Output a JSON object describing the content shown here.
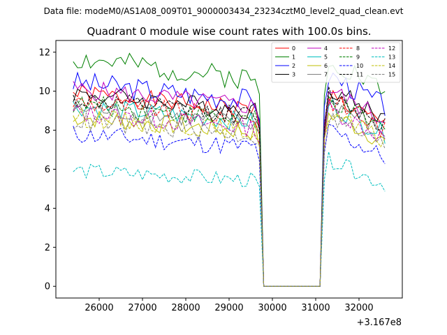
{
  "figure": {
    "suptitle": "Data file: modeM0/AS1A08_009T01_9000003434_23234cztM0_level2_quad_clean.evt",
    "title": "Quadrant 0 module wise count rates with 100.0s bins.",
    "x_offset_label": "+3.167e8"
  },
  "chart_data": {
    "type": "line",
    "title": "Quadrant 0 module wise count rates with 100.0s bins.",
    "xlabel": "",
    "ylabel": "",
    "x_offset": 316700000,
    "xlim": [
      25000,
      33000
    ],
    "ylim": [
      -0.6,
      12.6
    ],
    "xticks": [
      26000,
      27000,
      28000,
      29000,
      30000,
      31000,
      32000
    ],
    "yticks": [
      0,
      2,
      4,
      6,
      8,
      10,
      12
    ],
    "x_start": 25400,
    "x_end": 32600,
    "bin_width": 100,
    "gap_start": 29700,
    "gap_end": 31200,
    "grid": false,
    "legend_placement": "top-right",
    "series": [
      {
        "name": "0",
        "color": "#ff0000",
        "style": "solid",
        "level_before": 9.0,
        "level_after": 9.0,
        "amp": 0.5
      },
      {
        "name": "1",
        "color": "#008000",
        "style": "solid",
        "level_before": 10.6,
        "level_after": 10.8,
        "amp": 0.6
      },
      {
        "name": "2",
        "color": "#0000ff",
        "style": "solid",
        "level_before": 9.5,
        "level_after": 10.0,
        "amp": 0.6
      },
      {
        "name": "3",
        "color": "#000000",
        "style": "solid",
        "level_before": 9.0,
        "level_after": 9.4,
        "amp": 0.5
      },
      {
        "name": "4",
        "color": "#bf00bf",
        "style": "solid",
        "level_before": 9.2,
        "level_after": 9.3,
        "amp": 0.5
      },
      {
        "name": "5",
        "color": "#00bfbf",
        "style": "solid",
        "level_before": 8.4,
        "level_after": 8.6,
        "amp": 0.5
      },
      {
        "name": "6",
        "color": "#bfbf00",
        "style": "solid",
        "level_before": 7.9,
        "level_after": 8.2,
        "amp": 0.5
      },
      {
        "name": "7",
        "color": "#808080",
        "style": "solid",
        "level_before": 8.3,
        "level_after": 8.7,
        "amp": 0.5
      },
      {
        "name": "8",
        "color": "#ff0000",
        "style": "dashed",
        "level_before": 8.6,
        "level_after": 8.8,
        "amp": 0.5
      },
      {
        "name": "9",
        "color": "#008000",
        "style": "dashed",
        "level_before": 8.5,
        "level_after": 8.8,
        "amp": 0.5
      },
      {
        "name": "10",
        "color": "#0000ff",
        "style": "dashed",
        "level_before": 7.1,
        "level_after": 7.4,
        "amp": 0.5
      },
      {
        "name": "11",
        "color": "#000000",
        "style": "dashed",
        "level_before": 8.7,
        "level_after": 9.1,
        "amp": 0.5
      },
      {
        "name": "12",
        "color": "#bf00bf",
        "style": "dashed",
        "level_before": 8.1,
        "level_after": 8.4,
        "amp": 0.5
      },
      {
        "name": "13",
        "color": "#00bfbf",
        "style": "dashed",
        "level_before": 5.4,
        "level_after": 6.0,
        "amp": 0.4
      },
      {
        "name": "14",
        "color": "#bfbf00",
        "style": "dashed",
        "level_before": 7.9,
        "level_after": 8.2,
        "amp": 0.5
      },
      {
        "name": "15",
        "color": "#808080",
        "style": "dashed",
        "level_before": 7.7,
        "level_after": 8.0,
        "amp": 0.5
      }
    ]
  }
}
